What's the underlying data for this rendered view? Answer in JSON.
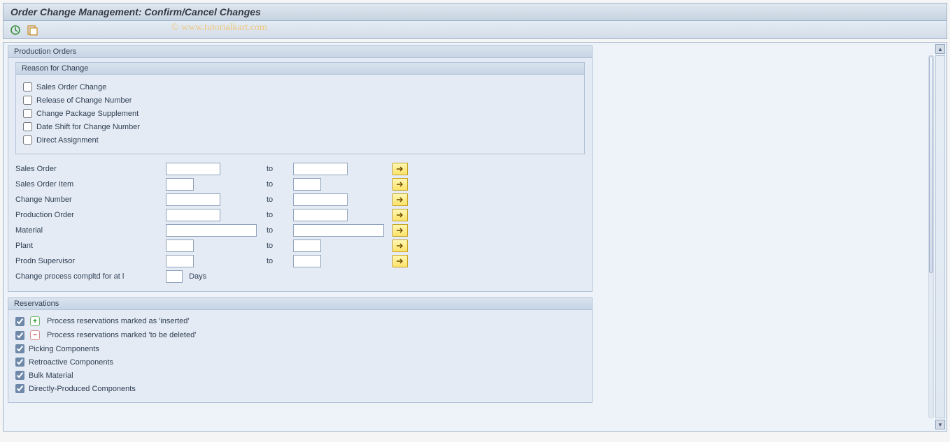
{
  "title": "Order Change Management: Confirm/Cancel Changes",
  "watermark": "© www.tutorialkart.com",
  "colors": {
    "header_gradient_top": "#e0e8f0",
    "header_gradient_bottom": "#c7d3e2",
    "panel_bg": "#e4ebf4",
    "border": "#a2b4c9",
    "yellow_btn_top": "#fff7b3",
    "yellow_btn_bottom": "#fde36a"
  },
  "toolbar": {
    "buttons": [
      {
        "name": "execute-icon",
        "glyph_color": "#2e8b2e"
      },
      {
        "name": "execute-variant-icon",
        "glyph_color": "#c78b1f"
      }
    ]
  },
  "productionOrders": {
    "title": "Production Orders",
    "reasonForChange": {
      "title": "Reason for Change",
      "items": [
        {
          "label": "Sales Order Change",
          "checked": false
        },
        {
          "label": "Release of Change Number",
          "checked": false
        },
        {
          "label": "Change Package Supplement",
          "checked": false
        },
        {
          "label": "Date Shift for Change Number",
          "checked": false
        },
        {
          "label": "Direct Assignment",
          "checked": false
        }
      ]
    },
    "ranges": [
      {
        "label": "Sales Order",
        "from": "",
        "to": "",
        "to_label": "to",
        "from_w": "w80",
        "to_w": "w80",
        "multi": true
      },
      {
        "label": "Sales Order Item",
        "from": "",
        "to": "",
        "to_label": "to",
        "from_w": "w40",
        "to_w": "w40",
        "multi": true
      },
      {
        "label": "Change Number",
        "from": "",
        "to": "",
        "to_label": "to",
        "from_w": "w80",
        "to_w": "w80",
        "multi": true
      },
      {
        "label": "Production Order",
        "from": "",
        "to": "",
        "to_label": "to",
        "from_w": "w80",
        "to_w": "w80",
        "multi": true
      },
      {
        "label": "Material",
        "from": "",
        "to": "",
        "to_label": "to",
        "from_w": "w130",
        "to_w": "w130",
        "multi": true
      },
      {
        "label": "Plant",
        "from": "",
        "to": "",
        "to_label": "to",
        "from_w": "w40",
        "to_w": "w40",
        "multi": true
      },
      {
        "label": "Prodn Supervisor",
        "from": "",
        "to": "",
        "to_label": "to",
        "from_w": "w40",
        "to_w": "w40",
        "multi": true
      }
    ],
    "completedRow": {
      "label": "Change process compltd for at l",
      "value": "",
      "unit": "Days"
    }
  },
  "reservations": {
    "title": "Reservations",
    "items": [
      {
        "label": "Process reservations marked as 'inserted'",
        "checked": true,
        "badge": "plus"
      },
      {
        "label": "Process reservations marked 'to be deleted'",
        "checked": true,
        "badge": "minus"
      },
      {
        "label": "Picking Components",
        "checked": true,
        "badge": null
      },
      {
        "label": "Retroactive Components",
        "checked": true,
        "badge": null
      },
      {
        "label": "Bulk Material",
        "checked": true,
        "badge": null
      },
      {
        "label": "Directly-Produced Components",
        "checked": true,
        "badge": null
      }
    ]
  }
}
